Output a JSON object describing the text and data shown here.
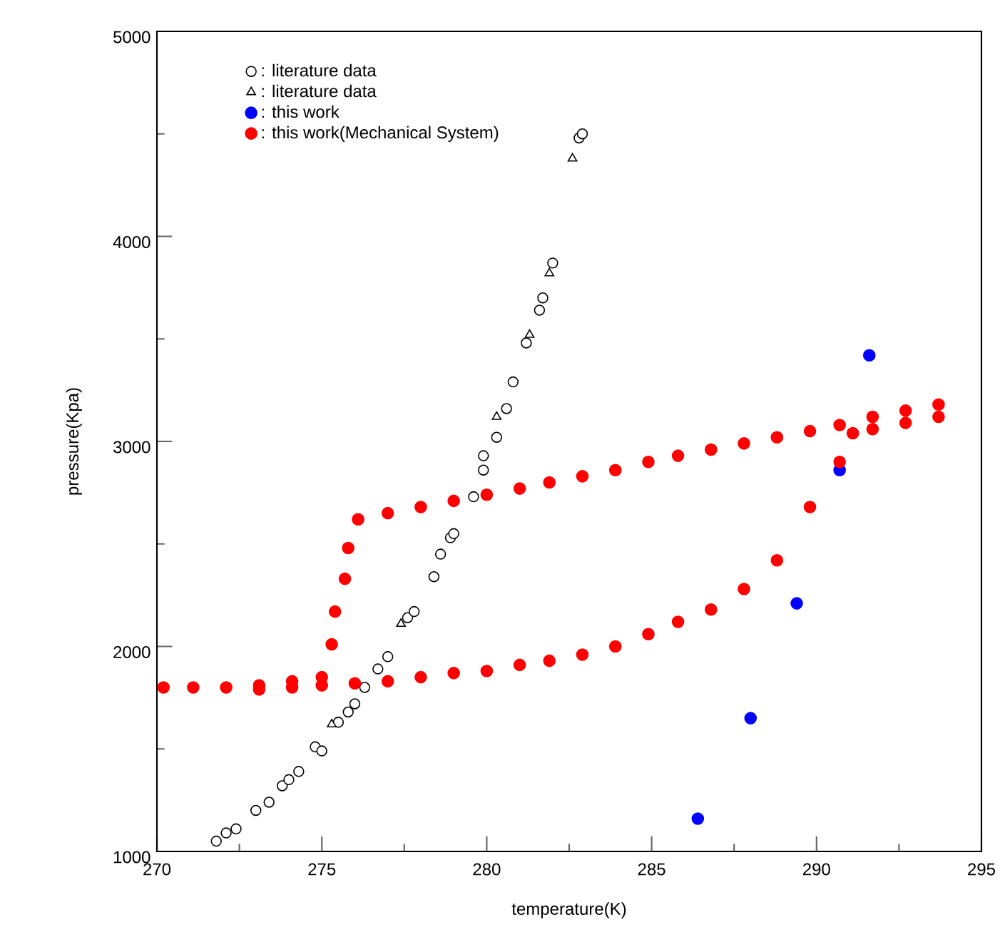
{
  "chart_data": {
    "type": "scatter",
    "xlabel": "temperature(K)",
    "ylabel": "pressure(Kpa)",
    "xlim": [
      270,
      295
    ],
    "ylim": [
      1000,
      5000
    ],
    "xticks": [
      270,
      275,
      280,
      285,
      290,
      295
    ],
    "yticks": [
      1000,
      2000,
      3000,
      4000,
      5000
    ],
    "grid": false,
    "legend": "top left",
    "series": [
      {
        "name": ": literature data",
        "color": "#000000",
        "marker": "circle",
        "x": [
          271.8,
          272.1,
          272.4,
          273.0,
          273.4,
          273.8,
          274.0,
          274.3,
          274.8,
          275.0,
          275.5,
          275.8,
          276.0,
          276.3,
          276.7,
          277.0,
          277.6,
          277.8,
          278.4,
          278.6,
          278.9,
          279.0,
          279.6,
          279.9,
          279.9,
          280.3,
          280.6,
          280.8,
          281.2,
          281.6,
          281.7,
          282.0,
          282.8,
          282.9
        ],
        "values": [
          1050,
          1090,
          1110,
          1200,
          1240,
          1320,
          1350,
          1390,
          1510,
          1490,
          1630,
          1680,
          1720,
          1800,
          1890,
          1950,
          2140,
          2170,
          2340,
          2450,
          2530,
          2550,
          2730,
          2860,
          2930,
          3020,
          3160,
          3290,
          3480,
          3640,
          3700,
          3870,
          4480,
          4500
        ]
      },
      {
        "name": ": literature data",
        "color": "#000000",
        "marker": "triangle",
        "x": [
          275.3,
          277.4,
          280.3,
          281.3,
          281.9,
          282.6
        ],
        "values": [
          1620,
          2110,
          3120,
          3520,
          3820,
          4380
        ]
      },
      {
        "name": ": this work",
        "color": "#0000ff",
        "marker": "circle",
        "x": [
          286.4,
          288.0,
          289.4,
          290.7,
          291.6
        ],
        "values": [
          1160,
          1650,
          2210,
          2860,
          3420
        ]
      },
      {
        "name": ": this work(Mechanical System)",
        "color": "#ff0000",
        "marker": "circle",
        "x": [
          270.2,
          271.1,
          272.1,
          273.1,
          273.1,
          274.1,
          274.1,
          275.0,
          275.0,
          276.0,
          277.0,
          278.0,
          279.0,
          280.0,
          281.0,
          281.9,
          282.9,
          283.9,
          284.9,
          285.8,
          286.8,
          287.8,
          288.8,
          289.8,
          290.7,
          275.3,
          275.4,
          275.7,
          275.8,
          276.1,
          277.0,
          278.0,
          279.0,
          280.0,
          281.0,
          281.9,
          282.9,
          283.9,
          284.9,
          285.8,
          286.8,
          287.8,
          288.8,
          289.8,
          290.7,
          291.1,
          291.7,
          291.7,
          292.7,
          292.7,
          293.7,
          293.7
        ],
        "values": [
          1800,
          1800,
          1800,
          1810,
          1790,
          1830,
          1800,
          1850,
          1810,
          1820,
          1830,
          1850,
          1870,
          1880,
          1910,
          1930,
          1960,
          2000,
          2060,
          2120,
          2180,
          2280,
          2420,
          2680,
          2900,
          2010,
          2170,
          2330,
          2480,
          2620,
          2650,
          2680,
          2710,
          2740,
          2770,
          2800,
          2830,
          2860,
          2900,
          2930,
          2960,
          2990,
          3020,
          3050,
          3080,
          3040,
          3120,
          3060,
          3150,
          3090,
          3180,
          3120
        ]
      }
    ]
  }
}
